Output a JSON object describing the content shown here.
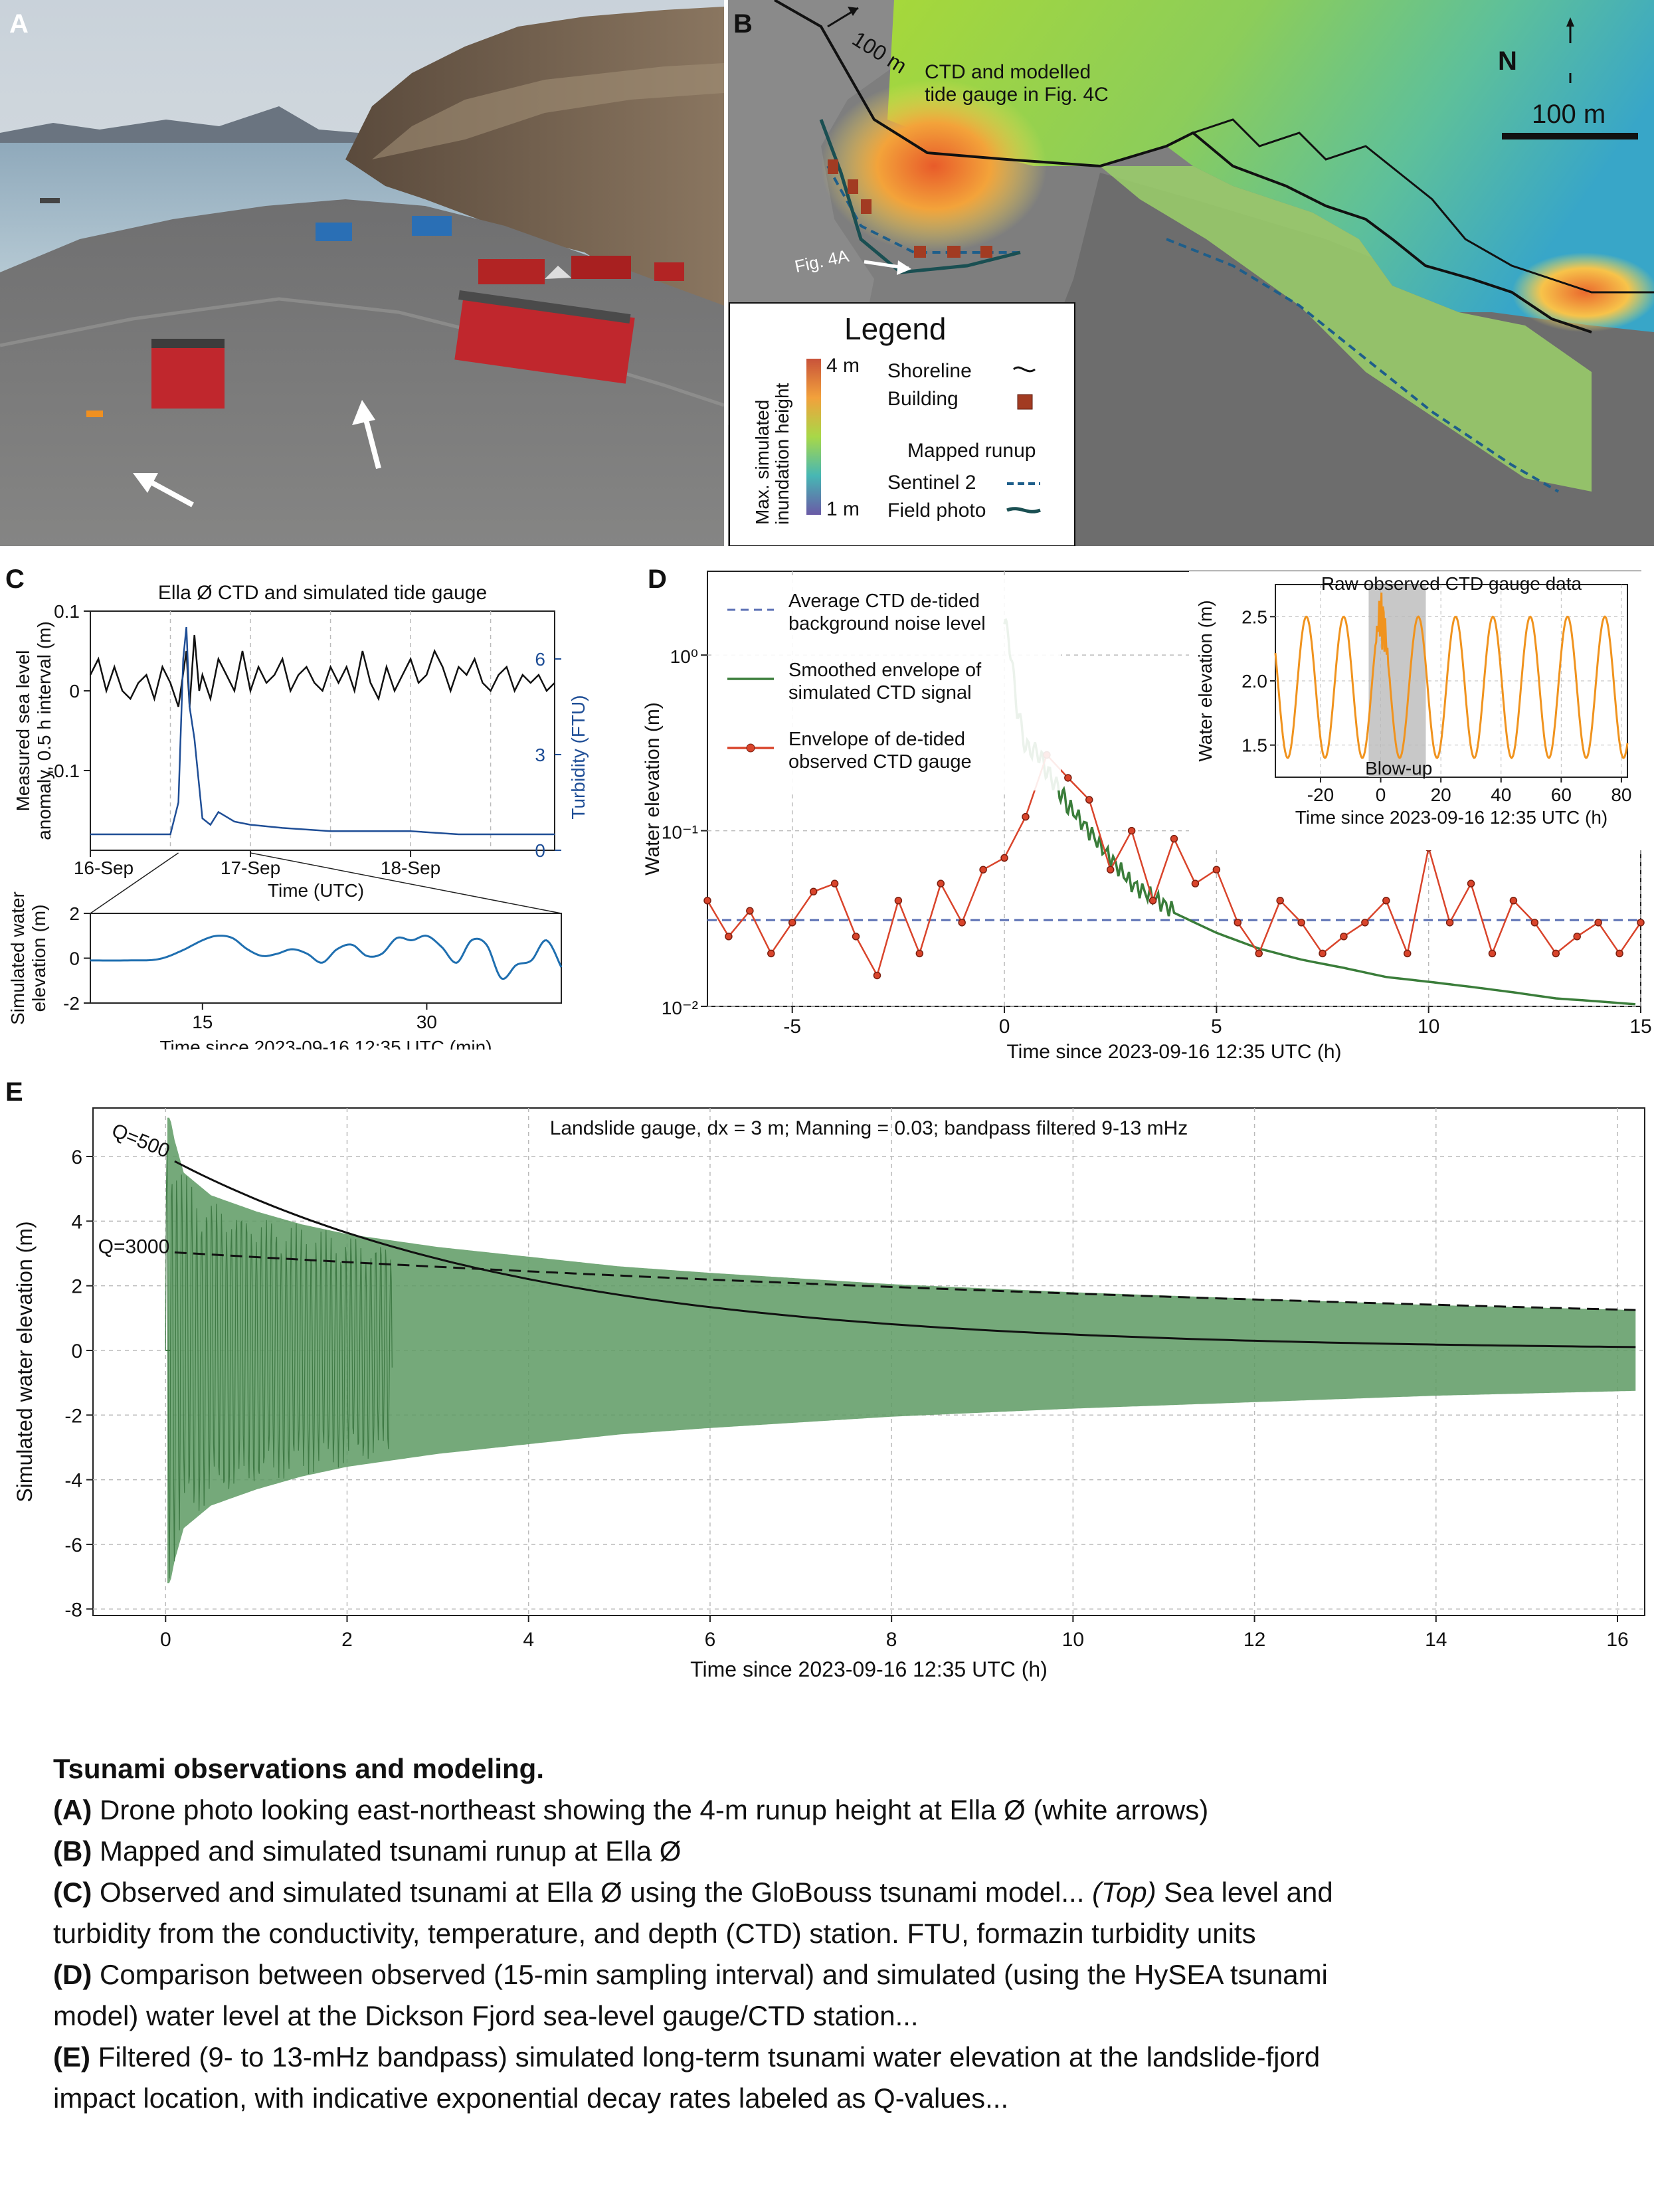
{
  "panels": {
    "a": {
      "letter": "A"
    },
    "b": {
      "letter": "B",
      "north": "N",
      "scale_bar": "100 m",
      "distance_label": "100 m",
      "ctd_label_line1": "CTD and modelled",
      "ctd_label_line2": "tide gauge in Fig. 4C",
      "fig_ref": "Fig. 4A",
      "legend": {
        "title": "Legend",
        "colorbar_label_line1": "Max. simulated",
        "colorbar_label_line2": "inundation height",
        "colorbar_max": "4 m",
        "colorbar_min": "1 m",
        "shoreline": "Shoreline",
        "building": "Building",
        "mapped_runup": "Mapped runup",
        "sentinel": "Sentinel 2",
        "field_photo": "Field photo"
      }
    },
    "c": {
      "letter": "C"
    },
    "d": {
      "letter": "D"
    },
    "e": {
      "letter": "E"
    }
  },
  "colors": {
    "ctd_line": "#111111",
    "turbidity": "#1f4e96",
    "sim_line": "#1f6fb0",
    "envelope_sim": "#3a7d3a",
    "envelope_obs": "#d9442b",
    "noise_level": "#5a6fb4",
    "raw_ctd": "#f0931e",
    "fill_green": "#5d9a63"
  },
  "chart_data": [
    {
      "id": "C-top",
      "type": "line",
      "title": "Ella Ø CTD and simulated tide gauge",
      "xlabel": "Time (UTC)",
      "ylabel_line1": "Measured sea level",
      "ylabel_line2": "anomaly, 0.5 h interval (m)",
      "y2label": "Turbidity (FTU)",
      "x_ticks": [
        "16-Sep",
        "17-Sep",
        "18-Sep"
      ],
      "y_ticks": [
        "0.1",
        "0",
        "-0.1"
      ],
      "y2_ticks": [
        "6",
        "3",
        "0"
      ],
      "ylim": [
        -0.2,
        0.1
      ],
      "y2lim": [
        0,
        7.5
      ],
      "x_days": [
        16,
        18.9
      ],
      "series": [
        {
          "name": "Measured sea level",
          "x": [
            16.0,
            16.05,
            16.1,
            16.15,
            16.2,
            16.25,
            16.3,
            16.35,
            16.4,
            16.45,
            16.5,
            16.55,
            16.6,
            16.62,
            16.65,
            16.68,
            16.7,
            16.75,
            16.8,
            16.85,
            16.9,
            16.95,
            17.0,
            17.05,
            17.1,
            17.15,
            17.2,
            17.25,
            17.3,
            17.35,
            17.4,
            17.45,
            17.5,
            17.55,
            17.6,
            17.65,
            17.7,
            17.75,
            17.8,
            17.85,
            17.9,
            17.95,
            18.0,
            18.05,
            18.1,
            18.15,
            18.2,
            18.25,
            18.3,
            18.35,
            18.4,
            18.45,
            18.5,
            18.55,
            18.6,
            18.65,
            18.7,
            18.75,
            18.8,
            18.85,
            18.9
          ],
          "values": [
            0.02,
            0.04,
            0.0,
            0.03,
            0.0,
            -0.01,
            0.01,
            0.02,
            -0.01,
            0.03,
            0.01,
            -0.02,
            0.05,
            -0.02,
            0.07,
            0.0,
            0.02,
            -0.01,
            0.04,
            0.02,
            0.0,
            0.05,
            0.0,
            0.03,
            0.01,
            0.02,
            0.04,
            0.0,
            0.02,
            0.03,
            0.01,
            0.0,
            0.03,
            0.01,
            0.03,
            0.0,
            0.05,
            0.01,
            -0.01,
            0.03,
            0.0,
            0.02,
            0.04,
            0.01,
            0.02,
            0.05,
            0.03,
            0.0,
            0.03,
            0.02,
            0.04,
            0.01,
            0.0,
            0.02,
            0.03,
            0.0,
            0.02,
            0.01,
            0.02,
            0.0,
            0.01
          ]
        },
        {
          "name": "Turbidity",
          "x": [
            16.0,
            16.2,
            16.4,
            16.5,
            16.55,
            16.58,
            16.6,
            16.62,
            16.65,
            16.68,
            16.7,
            16.75,
            16.8,
            16.9,
            17.0,
            17.2,
            17.5,
            17.8,
            18.0,
            18.3,
            18.6,
            18.9
          ],
          "values": [
            0.5,
            0.5,
            0.5,
            0.5,
            1.5,
            6.0,
            7.0,
            4.5,
            3.5,
            2.0,
            1.0,
            0.8,
            1.2,
            0.9,
            0.8,
            0.7,
            0.6,
            0.6,
            0.6,
            0.5,
            0.5,
            0.5
          ]
        }
      ]
    },
    {
      "id": "C-bottom",
      "type": "line",
      "xlabel": "Time since 2023-09-16 12:35 UTC (min)",
      "ylabel_line1": "Simulated water",
      "ylabel_line2": "elevation (m)",
      "x_ticks": [
        "15",
        "30"
      ],
      "y_ticks": [
        "2",
        "0",
        "-2"
      ],
      "xlim": [
        7.5,
        39
      ],
      "ylim": [
        -2,
        2
      ],
      "series": [
        {
          "name": "Simulated water elevation",
          "x": [
            7.5,
            10,
            12,
            13.5,
            15,
            16,
            17,
            18,
            19,
            20,
            21,
            22,
            23,
            24,
            25,
            26,
            27,
            28,
            29,
            30,
            31,
            32,
            33,
            34,
            35,
            36,
            37,
            38,
            39
          ],
          "values": [
            -0.1,
            -0.1,
            -0.05,
            0.3,
            0.8,
            1.0,
            0.9,
            0.4,
            0.1,
            0.2,
            0.4,
            0.2,
            -0.2,
            0.4,
            0.6,
            0.1,
            0.2,
            0.9,
            0.8,
            1.0,
            0.5,
            -0.2,
            0.8,
            0.6,
            -0.9,
            -0.3,
            -0.1,
            0.8,
            -0.4
          ]
        }
      ]
    },
    {
      "id": "D",
      "type": "line",
      "xlabel": "Time since 2023-09-16 12:35 UTC (h)",
      "ylabel": "Water elevation (m)",
      "x_ticks": [
        "-5",
        "0",
        "5",
        "10",
        "15"
      ],
      "y_ticks": [
        "10⁰",
        "10⁻¹",
        "10⁻²"
      ],
      "xlim": [
        -7,
        15
      ],
      "ylim": [
        0.01,
        3
      ],
      "yscale": "log",
      "series": [
        {
          "name": "Average CTD de-tided background noise level",
          "x": [
            -7,
            15
          ],
          "values": [
            0.031,
            0.031
          ]
        },
        {
          "name": "Smoothed envelope of simulated CTD signal",
          "x": [
            0,
            0.1,
            0.3,
            0.5,
            0.8,
            1.0,
            1.3,
            1.5,
            2.0,
            2.5,
            3.0,
            3.5,
            4,
            5,
            6,
            7,
            8,
            9,
            10,
            11,
            12,
            13,
            14,
            15
          ],
          "values": [
            1.5,
            1.3,
            0.5,
            0.3,
            0.28,
            0.22,
            0.17,
            0.14,
            0.1,
            0.07,
            0.05,
            0.042,
            0.035,
            0.027,
            0.022,
            0.019,
            0.017,
            0.015,
            0.014,
            0.013,
            0.012,
            0.011,
            0.0105,
            0.01
          ]
        },
        {
          "name": "Envelope of de-tided observed CTD gauge",
          "x": [
            -7,
            -6.5,
            -6,
            -5.5,
            -5,
            -4.5,
            -4,
            -3.5,
            -3,
            -2.5,
            -2,
            -1.5,
            -1,
            -0.5,
            0,
            0.5,
            1,
            1.5,
            2,
            2.5,
            3,
            3.5,
            4,
            4.5,
            5,
            5.5,
            6,
            6.5,
            7,
            7.5,
            8,
            8.5,
            9,
            9.5,
            10,
            10.5,
            11,
            11.5,
            12,
            12.5,
            13,
            13.5,
            14,
            14.5,
            15
          ],
          "values": [
            0.04,
            0.025,
            0.035,
            0.02,
            0.03,
            0.045,
            0.05,
            0.025,
            0.015,
            0.04,
            0.02,
            0.05,
            0.03,
            0.06,
            0.07,
            0.12,
            0.27,
            0.2,
            0.15,
            0.06,
            0.1,
            0.04,
            0.09,
            0.05,
            0.06,
            0.03,
            0.02,
            0.04,
            0.03,
            0.02,
            0.025,
            0.03,
            0.04,
            0.02,
            0.08,
            0.03,
            0.05,
            0.02,
            0.04,
            0.03,
            0.02,
            0.025,
            0.03,
            0.02,
            0.03
          ]
        }
      ],
      "inset": {
        "title": "Raw observed CTD gauge data",
        "ylabel": "Water elevation (m)",
        "xlabel": "Time since 2023-09-16 12:35 UTC (h)",
        "x_ticks": [
          "-20",
          "0",
          "20",
          "40",
          "60",
          "80"
        ],
        "y_ticks": [
          "2.5",
          "2.0",
          "1.5"
        ],
        "xlim": [
          -35,
          82
        ],
        "ylim": [
          1.25,
          2.75
        ],
        "annotation": "Blow-up",
        "highlight_x": [
          -4,
          15
        ],
        "series": [
          {
            "name": "Raw observed CTD",
            "tide_period_h": 12.4,
            "mean": 1.95,
            "amplitude": 0.55
          }
        ]
      }
    },
    {
      "id": "E",
      "type": "area",
      "title": "Landslide gauge, dx = 3 m; Manning = 0.03; bandpass filtered 9-13 mHz",
      "xlabel": "Time since 2023-09-16 12:35 UTC (h)",
      "ylabel": "Simulated water elevation (m)",
      "x_ticks": [
        "0",
        "2",
        "4",
        "6",
        "8",
        "10",
        "12",
        "14",
        "16"
      ],
      "y_ticks": [
        "6",
        "4",
        "2",
        "0",
        "-2",
        "-4",
        "-6",
        "-8"
      ],
      "xlim": [
        -0.8,
        16.3
      ],
      "ylim": [
        -8.2,
        7.5
      ],
      "envelope_x": [
        0.05,
        0.1,
        0.2,
        0.5,
        1,
        1.5,
        2,
        3,
        4,
        5,
        6,
        8,
        10,
        12,
        14,
        16.2
      ],
      "envelope_values": [
        7.2,
        6.5,
        5.5,
        4.8,
        4.3,
        3.9,
        3.6,
        3.2,
        2.9,
        2.6,
        2.4,
        2.05,
        1.8,
        1.6,
        1.4,
        1.25
      ],
      "series": [
        {
          "name": "Q=500",
          "start": 6.0,
          "decay_per_h": 0.25
        },
        {
          "name": "Q=3000",
          "start": 3.05,
          "decay_per_h": 0.055
        }
      ]
    }
  ],
  "caption": {
    "title": "Tsunami observations and modeling.",
    "a_label": "(A)",
    "a_text": " Drone photo looking east-northeast showing the 4-m runup height at Ella Ø (white arrows)",
    "b_label": "(B)",
    "b_text": " Mapped and simulated tsunami runup at Ella Ø",
    "c_label": "(C)",
    "c_text": " Observed and simulated tsunami at Ella Ø using the GloBouss tsunami model... ",
    "c_top": "(Top)",
    "c_text2": " Sea level and turbidity from the conductivity, temperature, and depth (CTD) station. FTU, formazin turbidity units",
    "d_label": "(D)",
    "d_text": " Comparison between observed (15-min sampling interval) and simulated (using the HySEA tsunami model) water level at the Dickson Fjord sea-level gauge/CTD station...",
    "e_label": "(E)",
    "e_text": " Filtered (9- to 13-mHz bandpass) simulated long-term tsunami water elevation at the landslide-fjord impact location, with indicative exponential decay rates labeled as Q-values..."
  }
}
